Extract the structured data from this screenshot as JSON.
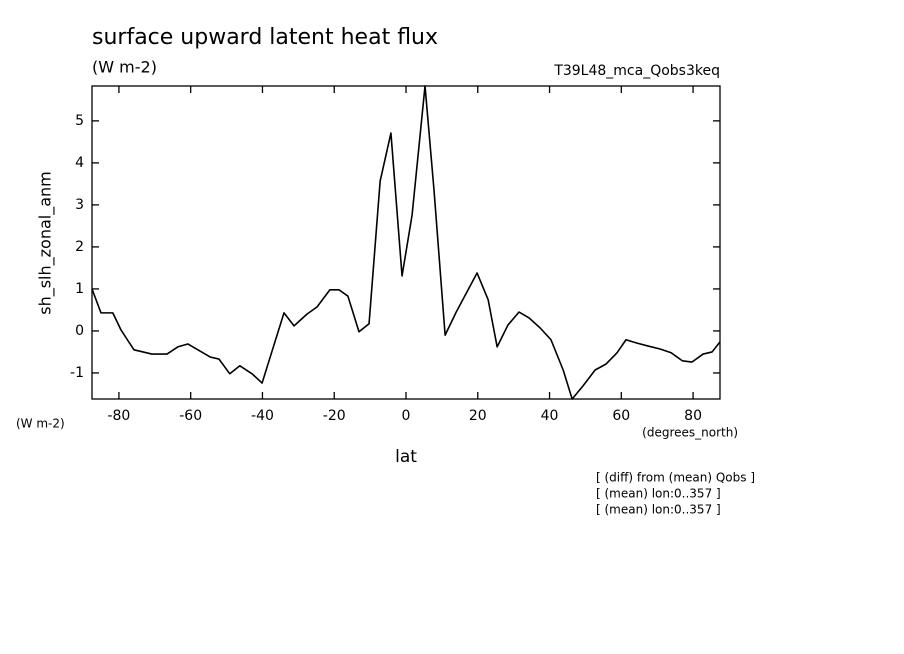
{
  "chart_data": {
    "type": "line",
    "title": "surface upward latent heat flux",
    "subtitle": "(W m-2)",
    "annotation": "T39L48_mca_Qobs3keq",
    "ylabel": "sh_slh_zonal_anm",
    "y_unit": "(W m-2)",
    "xlabel": "lat",
    "x_unit": "(degrees_north)",
    "notes": [
      "[ (diff) from (mean) Qobs ]",
      "[ (mean) lon:0..357 ]",
      "[ (mean) lon:0..357 ]"
    ],
    "color": "#000000",
    "x": [
      -87.5,
      -85.0,
      -81.7,
      -79.4,
      -75.8,
      -70.8,
      -66.6,
      -63.6,
      -60.8,
      -57.4,
      -54.6,
      -52.1,
      -49.1,
      -46.3,
      -42.9,
      -40.1,
      -37.4,
      -34.0,
      -31.2,
      -27.6,
      -24.8,
      -21.2,
      -18.7,
      -16.2,
      -13.1,
      -10.3,
      -7.2,
      -4.2,
      -1.1,
      1.7,
      5.3,
      7.8,
      10.9,
      14.0,
      19.8,
      22.9,
      25.4,
      28.4,
      31.5,
      34.3,
      37.4,
      40.4,
      43.8,
      46.3,
      49.3,
      52.7,
      55.7,
      58.8,
      61.3,
      64.4,
      67.5,
      70.8,
      73.9,
      77.0,
      79.7,
      82.8,
      85.3,
      87.5
    ],
    "values": [
      1.0,
      0.43,
      0.43,
      0.02,
      -0.45,
      -0.55,
      -0.55,
      -0.38,
      -0.31,
      -0.48,
      -0.62,
      -0.67,
      -1.02,
      -0.83,
      -1.02,
      -1.24,
      -0.5,
      0.43,
      0.12,
      0.4,
      0.57,
      0.98,
      0.98,
      0.83,
      -0.02,
      0.17,
      3.57,
      4.71,
      1.31,
      2.76,
      5.83,
      3.36,
      -0.1,
      0.45,
      1.38,
      0.74,
      -0.38,
      0.14,
      0.45,
      0.31,
      0.07,
      -0.21,
      -0.93,
      -1.62,
      -1.31,
      -0.93,
      -0.79,
      -0.52,
      -0.21,
      -0.29,
      -0.36,
      -0.43,
      -0.52,
      -0.71,
      -0.74,
      -0.55,
      -0.5,
      -0.26
    ],
    "xlim": [
      -87.5,
      87.5
    ],
    "xticks": [
      -80,
      -60,
      -40,
      -20,
      0,
      20,
      40,
      60,
      80
    ],
    "ylim": [
      -1.62,
      5.83
    ],
    "yticks": [
      -1,
      0,
      1,
      2,
      3,
      4,
      5
    ]
  }
}
